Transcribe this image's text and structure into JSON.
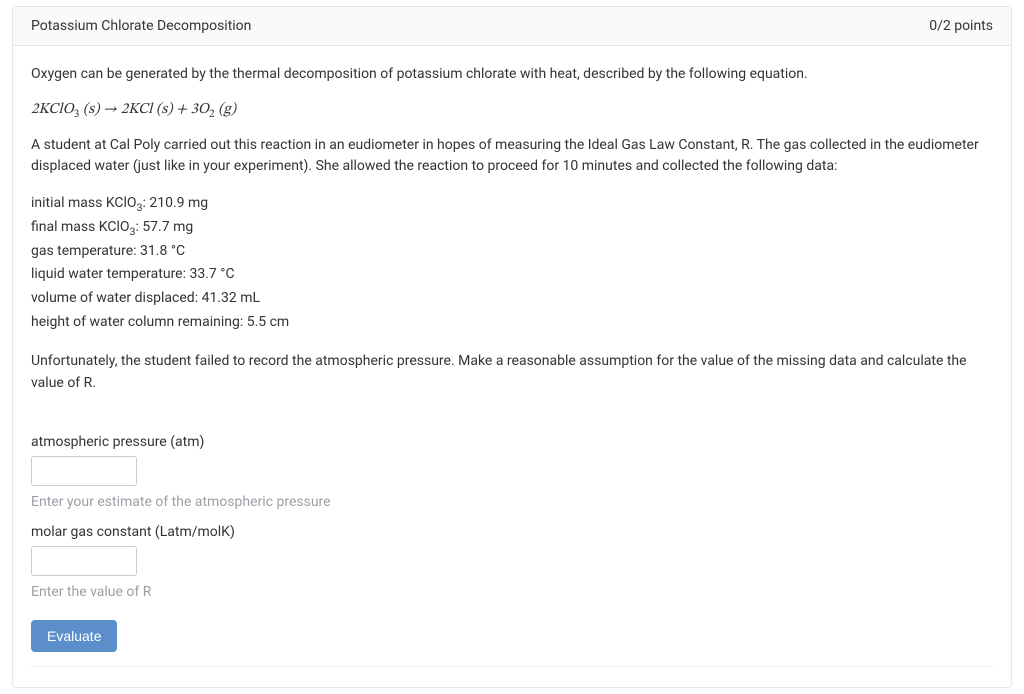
{
  "header": {
    "title": "Potassium Chlorate Decomposition",
    "points": "0/2 points"
  },
  "body": {
    "intro": "Oxygen can be generated by the thermal decomposition of potassium chlorate with heat, described by the following equation.",
    "equation_html": "2<i>KClO</i><sub>3</sub> (<i>s</i>) → 2<i>KCl</i> (<i>s</i>) + 3<i>O</i><sub>2</sub> (<i>g</i>)",
    "context": "A student at Cal Poly carried out this reaction in an eudiometer in hopes of measuring the Ideal Gas Law Constant, R. The gas collected in the eudiometer displaced water (just like in your experiment). She allowed the reaction to proceed for 10 minutes and collected the following data:",
    "data": [
      {
        "label_html": "initial mass KClO<sub>3</sub>:",
        "value": "210.9 mg"
      },
      {
        "label_html": "final mass KClO<sub>3</sub>:",
        "value": "57.7 mg"
      },
      {
        "label_html": "gas temperature:",
        "value": "31.8 °C"
      },
      {
        "label_html": "liquid water temperature:",
        "value": "33.7 °C"
      },
      {
        "label_html": "volume of water displaced:",
        "value": "41.32 mL"
      },
      {
        "label_html": "height of water column remaining:",
        "value": "5.5 cm"
      }
    ],
    "followup": "Unfortunately, the student failed to record the atmospheric pressure. Make a reasonable assumption for the value of the missing data and calculate the value of R."
  },
  "fields": {
    "atm": {
      "label": "atmospheric pressure (atm)",
      "value": "",
      "hint": "Enter your estimate of the atmospheric pressure"
    },
    "R": {
      "label": "molar gas constant (Latm/molK)",
      "value": "",
      "hint": "Enter the value of R"
    }
  },
  "actions": {
    "evaluate": "Evaluate"
  },
  "style": {
    "text_color": "#333333",
    "hint_color": "#9aa0a6",
    "border_color": "#e5e5e5",
    "header_bg": "#fafafa",
    "btn_bg": "#5b8ecb",
    "btn_text": "#ffffff",
    "input_border": "#cccccc"
  }
}
